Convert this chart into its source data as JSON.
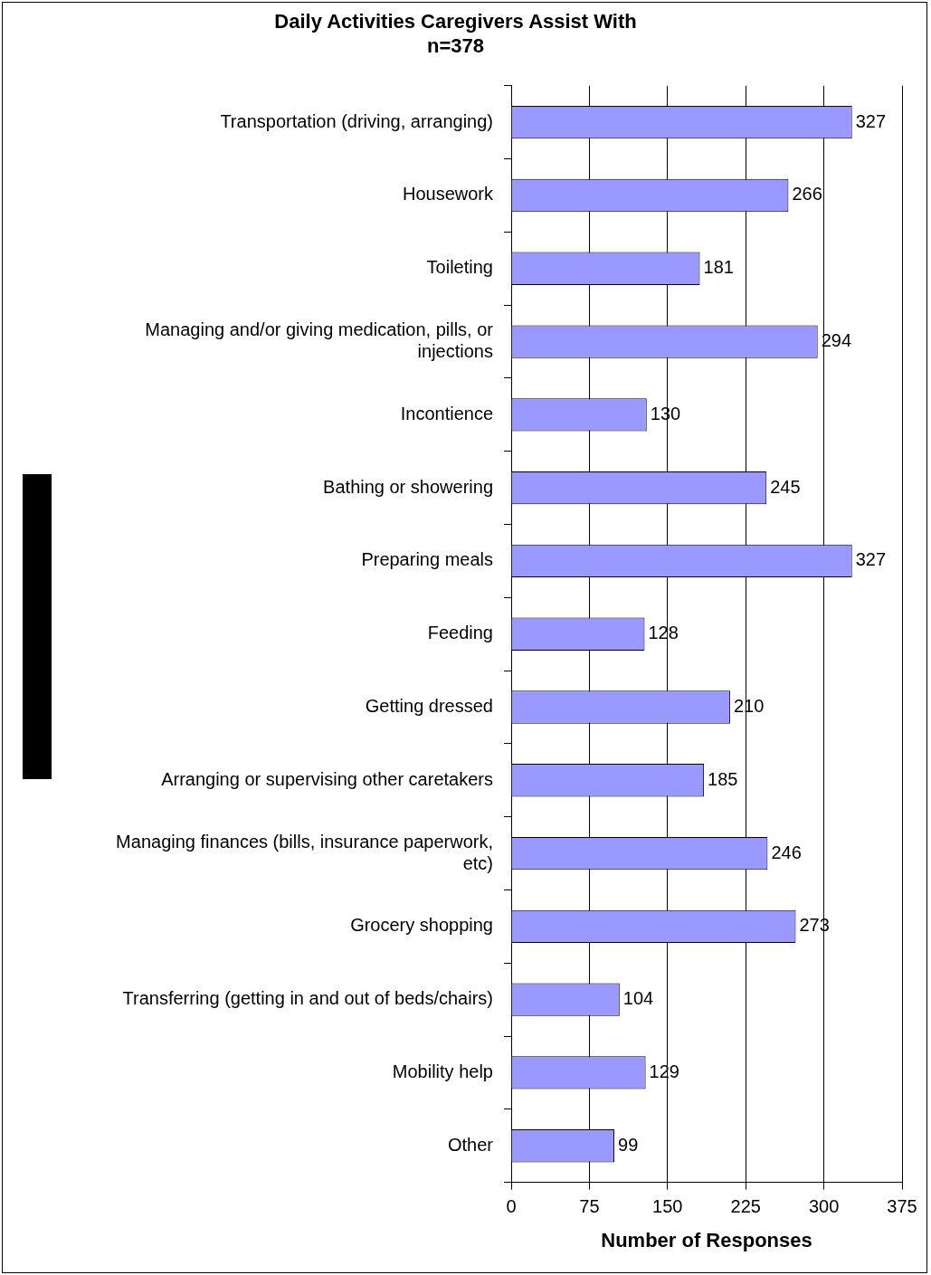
{
  "chart_data": {
    "type": "bar",
    "orientation": "horizontal",
    "title": "Daily Activities Caregivers Assist With",
    "subtitle": "n=378",
    "xlabel": "Number of Responses",
    "categories": [
      "Transportation (driving, arranging)",
      "Housework",
      "Toileting",
      "Managing and/or giving medication, pills, or injections",
      "Incontience",
      "Bathing or showering",
      "Preparing meals",
      "Feeding",
      "Getting dressed",
      "Arranging or supervising other caretakers",
      "Managing finances (bills, insurance paperwork, etc)",
      "Grocery shopping",
      "Transferring (getting in and out of beds/chairs)",
      "Mobility help",
      "Other"
    ],
    "values": [
      327,
      266,
      181,
      294,
      130,
      245,
      327,
      128,
      210,
      185,
      246,
      273,
      104,
      129,
      99
    ],
    "color": "#9999ff",
    "xlim": [
      0,
      375
    ],
    "xticks": [
      0,
      75,
      150,
      225,
      300,
      375
    ],
    "grid": "x",
    "data_labels": true,
    "legend": false
  }
}
